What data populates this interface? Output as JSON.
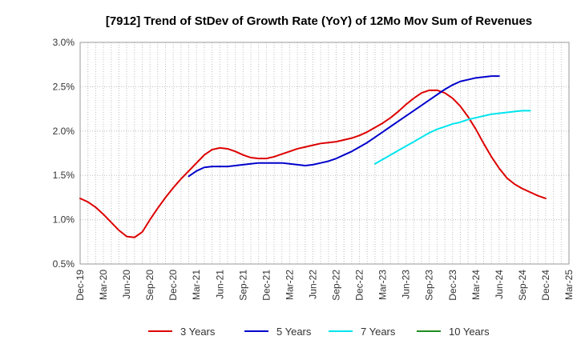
{
  "chart_data": {
    "type": "line",
    "title": "[7912]  Trend of StDev of Growth Rate (YoY) of 12Mo Mov Sum of Revenues",
    "xlabel": "",
    "ylabel": "",
    "ylim": [
      0.5,
      3.0
    ],
    "yticks": [
      0.5,
      1.0,
      1.5,
      2.0,
      2.5,
      3.0
    ],
    "ytick_labels": [
      "0.5%",
      "1.0%",
      "1.5%",
      "2.0%",
      "2.5%",
      "3.0%"
    ],
    "x_categories": [
      "Dec-19",
      "Mar-20",
      "Jun-20",
      "Sep-20",
      "Dec-20",
      "Mar-21",
      "Jun-21",
      "Sep-21",
      "Dec-21",
      "Mar-22",
      "Jun-22",
      "Sep-22",
      "Dec-22",
      "Mar-23",
      "Jun-23",
      "Sep-23",
      "Dec-23",
      "Mar-24",
      "Jun-24",
      "Sep-24",
      "Dec-24",
      "Mar-25"
    ],
    "grid": true,
    "legend_position": "bottom",
    "series": [
      {
        "name": "3 Years",
        "color": "#dd0000",
        "start_index": 0,
        "values": [
          1.24,
          1.2,
          1.14,
          1.06,
          0.97,
          0.88,
          0.81,
          0.8,
          0.86,
          1.0,
          1.13,
          1.25,
          1.36,
          1.46,
          1.55,
          1.64,
          1.73,
          1.79,
          1.81,
          1.8,
          1.77,
          1.73,
          1.7,
          1.69,
          1.69,
          1.71,
          1.74,
          1.77,
          1.8,
          1.82,
          1.84,
          1.86,
          1.87,
          1.88,
          1.9,
          1.92,
          1.95,
          1.99,
          2.04,
          2.09,
          2.15,
          2.22,
          2.3,
          2.37,
          2.43,
          2.46,
          2.46,
          2.43,
          2.37,
          2.28,
          2.16,
          2.02,
          1.86,
          1.71,
          1.58,
          1.47,
          1.4,
          1.35,
          1.31,
          1.27,
          1.24
        ]
      },
      {
        "name": "5 Years",
        "color": "#0000cc",
        "start_index": 14,
        "values": [
          1.49,
          1.55,
          1.59,
          1.6,
          1.6,
          1.6,
          1.61,
          1.62,
          1.63,
          1.64,
          1.64,
          1.64,
          1.64,
          1.63,
          1.62,
          1.61,
          1.62,
          1.64,
          1.66,
          1.69,
          1.73,
          1.77,
          1.82,
          1.87,
          1.93,
          1.99,
          2.05,
          2.11,
          2.17,
          2.23,
          2.29,
          2.35,
          2.41,
          2.47,
          2.52,
          2.56,
          2.58,
          2.6,
          2.61,
          2.62,
          2.62
        ]
      },
      {
        "name": "7 Years",
        "color": "#00e5ee",
        "start_index": 38,
        "values": [
          1.63,
          1.68,
          1.73,
          1.78,
          1.83,
          1.88,
          1.93,
          1.98,
          2.02,
          2.05,
          2.08,
          2.1,
          2.13,
          2.15,
          2.17,
          2.19,
          2.2,
          2.21,
          2.22,
          2.23,
          2.23
        ]
      },
      {
        "name": "10 Years",
        "color": "#228b22",
        "start_index": 0,
        "values": []
      }
    ]
  }
}
